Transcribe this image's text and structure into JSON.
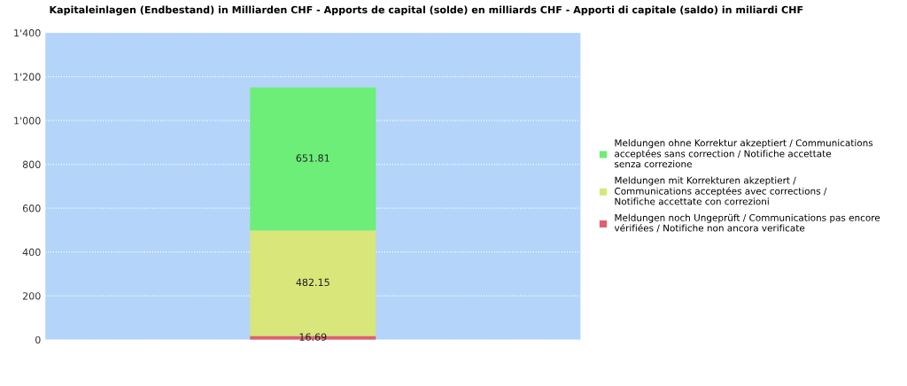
{
  "chart_data": {
    "type": "bar",
    "title": "Kapitaleinlagen (Endbestand) in Milliarden CHF - Apports de capital (solde) en milliards CHF - Apporti di capitale (saldo) in miliardi CHF",
    "categories": [
      null
    ],
    "stacked": true,
    "data_labels": true,
    "series": [
      {
        "name": "Meldungen noch Ungeprüft / Communications pas encore vérifiées / Notifiche non ancora verificate",
        "color": "#e0606a",
        "values": [
          16.69
        ]
      },
      {
        "name": "Meldungen mit Korrekturen akzeptiert / Communications acceptées avec corrections / Notifiche accettate con correzioni",
        "color": "#d8e67a",
        "values": [
          482.15
        ]
      },
      {
        "name": "Meldungen ohne Korrektur akzeptiert / Communications acceptées sans correction / Notifiche accettate senza correzione",
        "color": "#6cee78",
        "values": [
          651.81
        ]
      }
    ],
    "ylim": [
      0,
      1400
    ],
    "yticks": [
      0,
      200,
      400,
      600,
      800,
      {
        "value": 1000,
        "label": "1'000"
      },
      {
        "value": 1200,
        "label": "1'200"
      },
      {
        "value": 1400,
        "label": "1'400"
      }
    ],
    "grid": "y",
    "legend": "right"
  }
}
